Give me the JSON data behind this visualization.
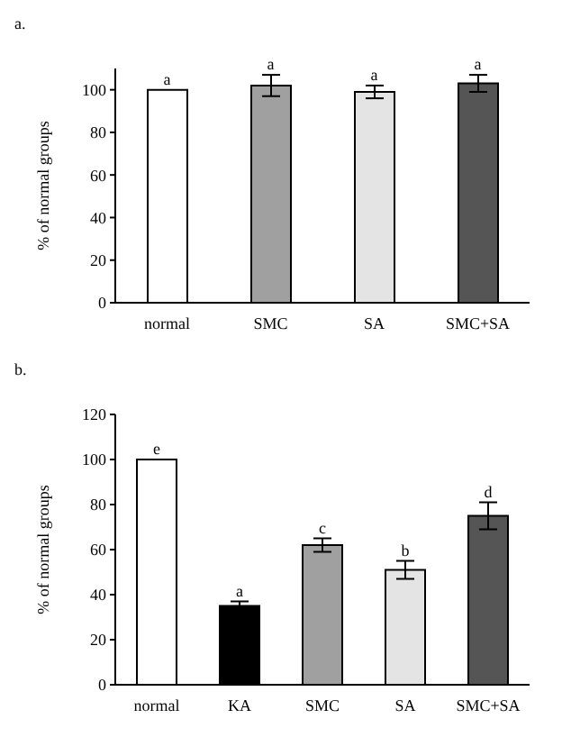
{
  "chart_data": [
    {
      "type": "bar",
      "title": "a.",
      "ylabel": "% of normal groups",
      "categories": [
        "normal",
        "SMC",
        "SA",
        "SMC+SA"
      ],
      "values": [
        100,
        102,
        99,
        103
      ],
      "errors": [
        null,
        5,
        3,
        4
      ],
      "colors": [
        "#ffffff",
        "#a0a0a0",
        "#e4e4e4",
        "#555555"
      ],
      "ylim": [
        0,
        110
      ],
      "yticks": [
        0,
        20,
        40,
        60,
        80,
        100
      ],
      "grid": false,
      "legend": false,
      "annotations": [
        {
          "text": "a",
          "x": "normal",
          "y": 100
        },
        {
          "text": "a",
          "x": "SMC",
          "y": 107
        },
        {
          "text": "a",
          "x": "SA",
          "y": 102
        },
        {
          "text": "a",
          "x": "SMC+SA",
          "y": 107
        }
      ]
    },
    {
      "type": "bar",
      "title": "b.",
      "ylabel": "% of normal groups",
      "categories": [
        "normal",
        "KA",
        "SMC",
        "SA",
        "SMC+SA"
      ],
      "values": [
        100,
        35,
        62,
        51,
        75
      ],
      "errors": [
        null,
        2,
        3,
        4,
        6
      ],
      "colors": [
        "#ffffff",
        "#000000",
        "#a0a0a0",
        "#e4e4e4",
        "#555555"
      ],
      "ylim": [
        0,
        120
      ],
      "yticks": [
        0,
        20,
        40,
        60,
        80,
        100,
        120
      ],
      "grid": false,
      "legend": false,
      "annotations": [
        {
          "text": "e",
          "x": "normal",
          "y": 100
        },
        {
          "text": "a",
          "x": "KA",
          "y": 37
        },
        {
          "text": "c",
          "x": "SMC",
          "y": 65
        },
        {
          "text": "b",
          "x": "SA",
          "y": 55
        },
        {
          "text": "d",
          "x": "SMC+SA",
          "y": 81
        }
      ]
    }
  ]
}
